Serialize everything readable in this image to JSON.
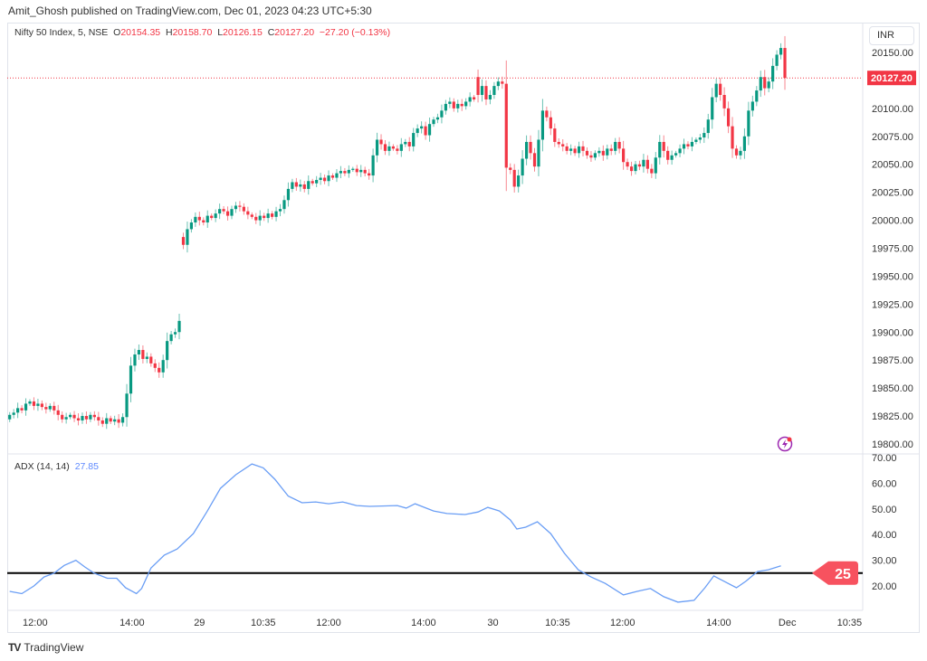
{
  "header": {
    "published": "Amit_Ghosh published on TradingView.com, Dec 01, 2023 04:23 UTC+5:30"
  },
  "legend": {
    "symbol": "Nifty 50 Index, 5, NSE",
    "open_label": "O",
    "open": "20154.35",
    "high_label": "H",
    "high": "20158.70",
    "low_label": "L",
    "low": "20126.15",
    "close_label": "C",
    "close": "20127.20",
    "change": "−27.20 (−0.13%)"
  },
  "currency": "INR",
  "last_price_label": "20127.20",
  "adx_legend": {
    "name": "ADX (14, 14)",
    "value": "27.85"
  },
  "level_badge": "25",
  "brand": {
    "name": "TradingView"
  },
  "colors": {
    "up": "#089981",
    "down": "#f23645",
    "adx": "#6a9ef5",
    "level": "#000000",
    "badge": "#f7525f",
    "alert_icon": "#9c27b0"
  },
  "chart_data": [
    {
      "type": "candlestick",
      "series_name": "Nifty 50 Index, 5, NSE",
      "ylim": [
        19790,
        20165
      ],
      "price_ticks": [
        "20150.00",
        "20125.00",
        "20100.00",
        "20075.00",
        "20050.00",
        "20025.00",
        "20000.00",
        "19975.00",
        "19950.00",
        "19925.00",
        "19900.00",
        "19875.00",
        "19850.00",
        "19825.00",
        "19800.00"
      ],
      "last_price": 20127.2,
      "sessions": [
        {
          "open": 19822,
          "closes": [
            19826,
            19828,
            19832,
            19830,
            19836,
            19838,
            19834,
            19836,
            19833,
            19831,
            19834,
            19830,
            19826,
            19822,
            19824,
            19826,
            19823,
            19821,
            19825,
            19822,
            19826,
            19824,
            19821,
            19818,
            19823,
            19820,
            19822,
            19819,
            19824,
            19845,
            19870,
            19880,
            19884,
            19876,
            19878,
            19872,
            19868,
            19864,
            19875,
            19892,
            19898,
            19900,
            19910
          ]
        },
        {
          "open": 19985,
          "closes": [
            19978,
            19992,
            19998,
            20003,
            20000,
            19998,
            20004,
            20002,
            20006,
            20010,
            20008,
            20004,
            20010,
            20013,
            20012,
            20008,
            20005,
            20003,
            20000,
            20004,
            20002,
            20006,
            20003,
            20008,
            20010,
            20018,
            20028,
            20034,
            20030,
            20032,
            20028,
            20035,
            20033,
            20036,
            20038,
            20035,
            20040,
            20038,
            20042,
            20044,
            20042,
            20045,
            20046,
            20043,
            20045,
            20042,
            20040,
            20058,
            20072,
            20068,
            20062,
            20066,
            20064,
            20062,
            20068,
            20070,
            20066,
            20078,
            20082,
            20084,
            20076,
            20086,
            20090,
            20092,
            20098,
            20104,
            20106,
            20100,
            20104,
            20102,
            20106,
            20110,
            20108
          ]
        },
        {
          "open": 20128,
          "closes": [
            20112,
            20120,
            20108,
            20112,
            20120,
            20124,
            20122,
            20047,
            20045,
            20030,
            20040,
            20055,
            20070,
            20060,
            20048,
            20072,
            20098,
            20092,
            20082,
            20070,
            20068,
            20066,
            20062,
            20064,
            20060,
            20066,
            20062,
            20058,
            20056,
            20060,
            20062,
            20058,
            20064,
            20062,
            20070,
            20064,
            20052,
            20048,
            20044,
            20050,
            20048,
            20054,
            20046,
            20042,
            20056,
            20070,
            20062,
            20054,
            20058,
            20060,
            20064,
            20068,
            20066,
            20070,
            20072,
            20074,
            20078,
            20090,
            20110,
            20122,
            20112,
            20100,
            20084,
            20064,
            20058,
            20062,
            20075,
            20098,
            20106,
            20116,
            20128,
            20118,
            20124,
            20138,
            20148,
            20154,
            20127.2
          ]
        }
      ],
      "time_ticks": [
        {
          "label": "12:00",
          "bar": 6.3
        },
        {
          "label": "14:00",
          "bar": 30.3
        },
        {
          "label": "29",
          "bar": 47
        },
        {
          "label": "10:35",
          "bar": 62.8
        },
        {
          "label": "12:00",
          "bar": 79
        },
        {
          "label": "14:00",
          "bar": 102.5
        },
        {
          "label": "30",
          "bar": 119.7
        },
        {
          "label": "10:35",
          "bar": 135.7
        },
        {
          "label": "12:00",
          "bar": 151.8
        },
        {
          "label": "14:00",
          "bar": 175.6
        },
        {
          "label": "Dec",
          "bar": 192.6
        },
        {
          "label": "10:35",
          "bar": 208
        }
      ]
    },
    {
      "type": "line",
      "series_name": "ADX (14, 14)",
      "ylim": [
        12,
        72
      ],
      "y_ticks": [
        "70.00",
        "60.00",
        "50.00",
        "40.00",
        "30.00",
        "20.00"
      ],
      "level": 25,
      "points": [
        [
          0,
          17.9
        ],
        [
          3,
          17
        ],
        [
          6,
          20
        ],
        [
          8.5,
          23.5
        ],
        [
          11,
          25
        ],
        [
          13.5,
          28
        ],
        [
          16.4,
          30
        ],
        [
          18.6,
          27.4
        ],
        [
          20.9,
          25
        ],
        [
          24.2,
          23
        ],
        [
          26.5,
          23
        ],
        [
          28.7,
          19.3
        ],
        [
          31.4,
          17
        ],
        [
          32.7,
          19
        ],
        [
          35,
          27
        ],
        [
          38.3,
          32
        ],
        [
          41.5,
          34.4
        ],
        [
          45.5,
          40.4
        ],
        [
          48.9,
          49
        ],
        [
          52.2,
          58
        ],
        [
          56,
          63.3
        ],
        [
          60,
          67.5
        ],
        [
          62.8,
          66
        ],
        [
          65.7,
          61.5
        ],
        [
          69,
          55
        ],
        [
          72.4,
          52.4
        ],
        [
          75.8,
          52.7
        ],
        [
          79,
          52
        ],
        [
          82.5,
          52.7
        ],
        [
          85.9,
          51.3
        ],
        [
          89.2,
          51
        ],
        [
          96,
          51.3
        ],
        [
          98.2,
          50.3
        ],
        [
          100.4,
          52
        ],
        [
          105,
          49.2
        ],
        [
          108.3,
          48.2
        ],
        [
          112.8,
          47.8
        ],
        [
          116,
          48.8
        ],
        [
          118.4,
          50.6
        ],
        [
          121.3,
          49.2
        ],
        [
          124,
          45.7
        ],
        [
          125.6,
          42.2
        ],
        [
          127.8,
          42.9
        ],
        [
          130.7,
          45
        ],
        [
          134,
          40.4
        ],
        [
          137.4,
          32.7
        ],
        [
          140.8,
          26.3
        ],
        [
          144,
          23.5
        ],
        [
          147.5,
          21
        ],
        [
          152,
          16.5
        ],
        [
          155.4,
          17.9
        ],
        [
          158.7,
          19
        ],
        [
          162,
          15.8
        ],
        [
          165.5,
          13.7
        ],
        [
          169.5,
          14.4
        ],
        [
          172.2,
          19.3
        ],
        [
          174.4,
          23.9
        ],
        [
          176.7,
          22
        ],
        [
          180,
          19.3
        ],
        [
          182.3,
          21.8
        ],
        [
          185.2,
          25.6
        ],
        [
          187.9,
          26.3
        ],
        [
          191,
          27.85
        ]
      ]
    }
  ]
}
